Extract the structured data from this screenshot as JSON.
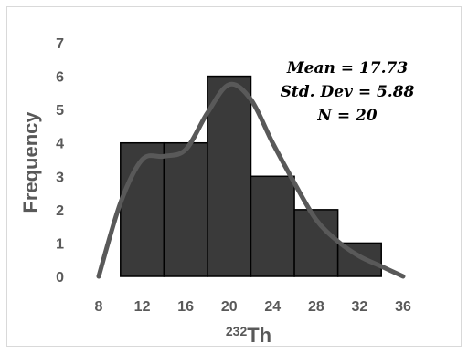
{
  "chart_data": {
    "type": "bar",
    "subtype": "histogram",
    "bins": [
      {
        "start": 10,
        "end": 14,
        "count": 4
      },
      {
        "start": 14,
        "end": 18,
        "count": 4
      },
      {
        "start": 18,
        "end": 22,
        "count": 6
      },
      {
        "start": 22,
        "end": 26,
        "count": 3
      },
      {
        "start": 26,
        "end": 30,
        "count": 2
      },
      {
        "start": 30,
        "end": 34,
        "count": 1
      }
    ],
    "curve": {
      "x": [
        8,
        10,
        12,
        14,
        16,
        18,
        20,
        22,
        24,
        26,
        28,
        30,
        32,
        34,
        36
      ],
      "y": [
        0,
        2.2,
        3.5,
        3.6,
        3.8,
        4.9,
        5.75,
        5.3,
        4.0,
        2.8,
        1.7,
        1.05,
        0.6,
        0.3,
        0
      ]
    },
    "xticks": [
      8,
      12,
      16,
      20,
      24,
      28,
      32,
      36
    ],
    "yticks": [
      0,
      1,
      2,
      3,
      4,
      5,
      6,
      7
    ],
    "xlim": [
      8,
      36
    ],
    "ylim": [
      0,
      7
    ],
    "ylabel": "Frequency",
    "xlabel": {
      "sup": "232",
      "main": "Th"
    },
    "grid": false,
    "legend": "none",
    "annotations": [
      "Mean = 17.73",
      "Std. Dev = 5.88",
      "N = 20"
    ],
    "colors": {
      "bar": "#3a3a3a",
      "bar_edge": "#000000",
      "curve": "#595959",
      "text": "#595959"
    }
  }
}
